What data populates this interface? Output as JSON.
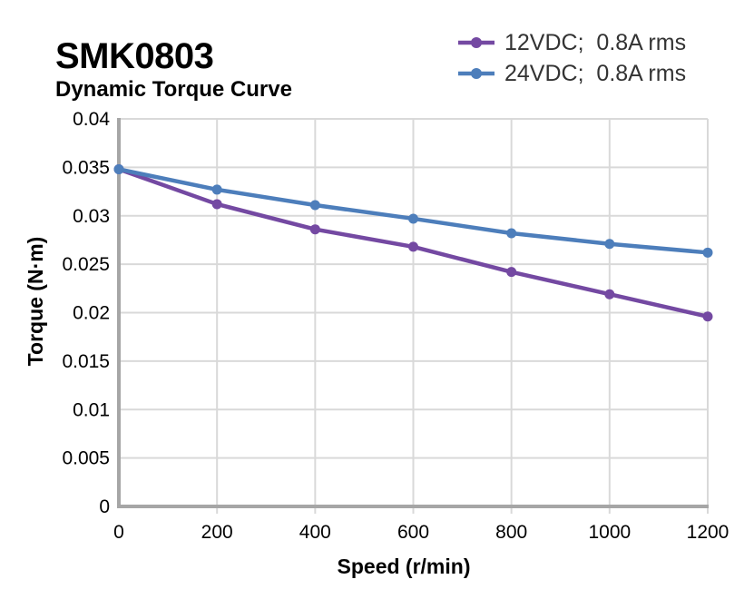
{
  "header": {
    "title": "SMK0803",
    "subtitle": "Dynamic Torque Curve"
  },
  "chart_data": {
    "type": "line",
    "title": "SMK0803",
    "subtitle": "Dynamic Torque Curve",
    "x": [
      0,
      200,
      400,
      600,
      800,
      1000,
      1200
    ],
    "series": [
      {
        "name": "12VDC;  0.8A rms",
        "color": "#7449a2",
        "values": [
          0.0348,
          0.0312,
          0.0286,
          0.0268,
          0.0242,
          0.0219,
          0.0196
        ]
      },
      {
        "name": "24VDC;  0.8A rms",
        "color": "#4d7ebb",
        "values": [
          0.0348,
          0.0327,
          0.0311,
          0.0297,
          0.0282,
          0.0271,
          0.0262
        ]
      }
    ],
    "xlabel": "Speed (r/min)",
    "ylabel": "Torque (N·m)",
    "xlim": [
      0,
      1200
    ],
    "ylim": [
      0,
      0.04
    ],
    "xticks": {
      "values": [
        0,
        200,
        400,
        600,
        800,
        1000,
        1200
      ],
      "labels": [
        "0",
        "200",
        "400",
        "600",
        "800",
        "1000",
        "1200"
      ]
    },
    "yticks": {
      "values": [
        0,
        0.005,
        0.01,
        0.015,
        0.02,
        0.025,
        0.03,
        0.035,
        0.04
      ],
      "labels": [
        "0",
        "0.005",
        "0.01",
        "0.015",
        "0.02",
        "0.025",
        "0.03",
        "0.035",
        "0.04"
      ]
    },
    "grid": true,
    "legend_position": "top-right",
    "marker": "circle",
    "colors": {
      "grid": "#d9d9d9",
      "axis": "#a6a6a6",
      "tick_text": "#000000",
      "legend_text": "#333333",
      "background": "#ffffff"
    }
  }
}
